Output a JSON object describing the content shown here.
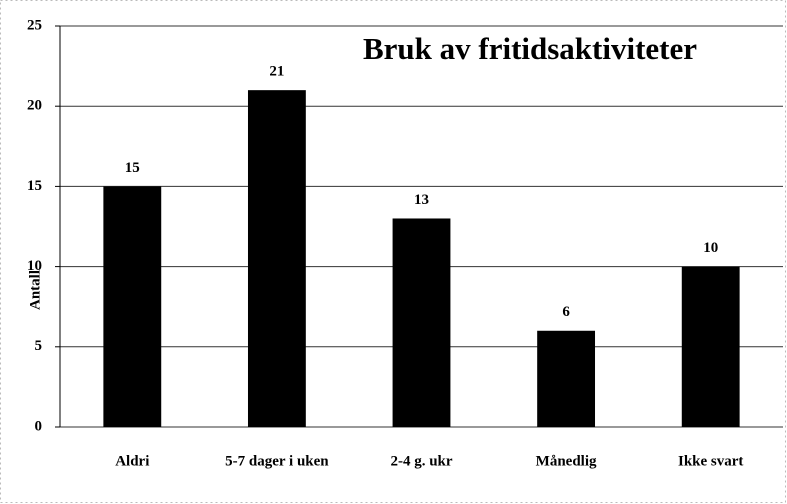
{
  "chart_data": {
    "type": "bar",
    "title": "Bruk av fritidsaktiviteter",
    "y_label": "Antall",
    "categories": [
      "Aldri",
      "5-7 dager i uken",
      "2-4 g. ukr",
      "Månedlig",
      "Ikke svart"
    ],
    "values": [
      15,
      21,
      13,
      6,
      10
    ],
    "color": "#000000",
    "ylim": [
      0,
      25
    ],
    "yticks": [
      0,
      5,
      10,
      15,
      20,
      25
    ],
    "grid": true
  }
}
